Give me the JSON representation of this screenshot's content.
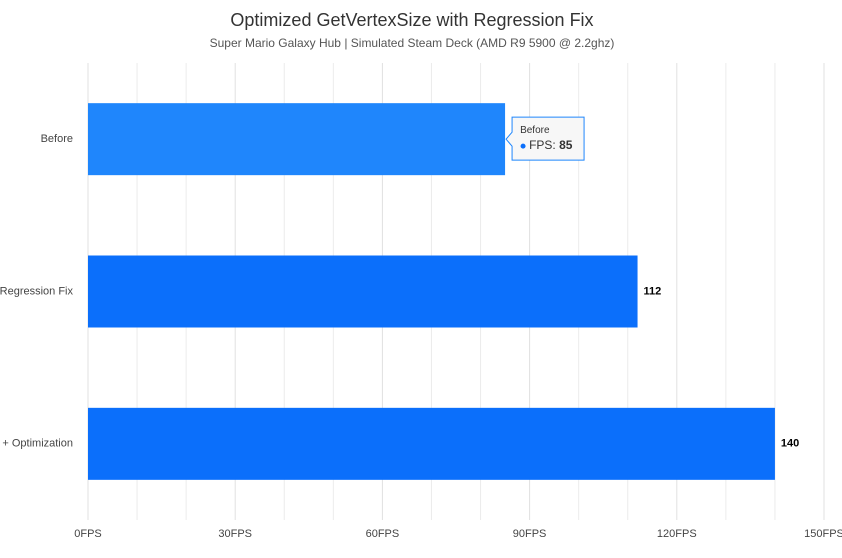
{
  "chart_data": {
    "type": "bar",
    "orientation": "horizontal",
    "title": "Optimized GetVertexSize with Regression Fix",
    "subtitle": "Super Mario Galaxy Hub | Simulated Steam Deck (AMD R9 5900 @ 2.2ghz)",
    "categories": [
      "Before",
      "Regression Fix",
      "+ Optimization"
    ],
    "series": [
      {
        "name": "FPS",
        "color": "#0b6ffb",
        "values": [
          85,
          112,
          140
        ]
      }
    ],
    "xlim": [
      0,
      150
    ],
    "xticks": [
      {
        "value": 0,
        "label": "0FPS"
      },
      {
        "value": 30,
        "label": "30FPS"
      },
      {
        "value": 60,
        "label": "60FPS"
      },
      {
        "value": 90,
        "label": "90FPS"
      },
      {
        "value": 120,
        "label": "120FPS"
      },
      {
        "value": 150,
        "label": "150FPS"
      }
    ],
    "grid": true
  }
}
